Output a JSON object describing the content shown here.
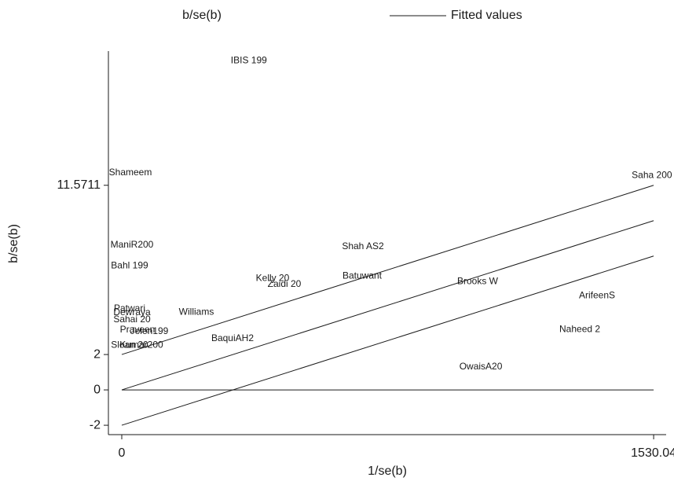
{
  "chart_data": {
    "type": "scatter",
    "x_label": "1/se(b)",
    "y_label": "b/se(b)",
    "xlim": [
      -38.4,
      1566
    ],
    "ylim": [
      -2.53,
      19.16
    ],
    "xticks": [
      0,
      1530.04
    ],
    "yticks": [
      -2,
      0,
      2,
      11.5711
    ],
    "series": [
      {
        "name": "b/se(b)",
        "color": "#1a1a1a",
        "labels": [
          "IBIS 199",
          "Shameem",
          "Saha 200",
          "ManiR200",
          "Bahl 199",
          "Shah AS2",
          "Kelly 20",
          "Zaidi 20",
          "Batuwant",
          "Brooks W",
          "ArifeenS",
          "Patwari",
          "Dewraya",
          "Williams",
          "Sahai 20",
          "Naheed 2",
          "Praveen",
          "Jolen199",
          "BaquiAH2",
          "Kumar200",
          "Sloan 20",
          "OwaisA20"
        ],
        "x": [
          365.7,
          24.9,
          1525,
          29.4,
          22.6,
          693.8,
          433.9,
          467.8,
          691.5,
          1023.7,
          1367.2,
          22.6,
          29.4,
          214.7,
          29.4,
          1317.5,
          45.2,
          79.1,
          318.6,
          56.5,
          22.6,
          1032.8
        ],
        "values": [
          18.62,
          12.27,
          12.13,
          8.18,
          7.02,
          8.09,
          6.31,
          5.96,
          6.44,
          6.13,
          5.33,
          4.58,
          4.36,
          4.4,
          3.96,
          3.42,
          3.38,
          3.29,
          2.89,
          2.53,
          2.53,
          1.29
        ]
      },
      {
        "name": "Fitted values",
        "color": "#1a1a1a",
        "x": [
          0,
          1530.04
        ],
        "values": [
          0,
          9.5711
        ]
      }
    ],
    "lines": [
      {
        "x": [
          0,
          1530.04
        ],
        "values": [
          2,
          11.5711
        ]
      },
      {
        "x": [
          0,
          1530.04
        ],
        "values": [
          -2,
          7.5711
        ]
      },
      {
        "x": [
          0,
          1530.04
        ],
        "values": [
          0,
          0
        ]
      }
    ]
  }
}
